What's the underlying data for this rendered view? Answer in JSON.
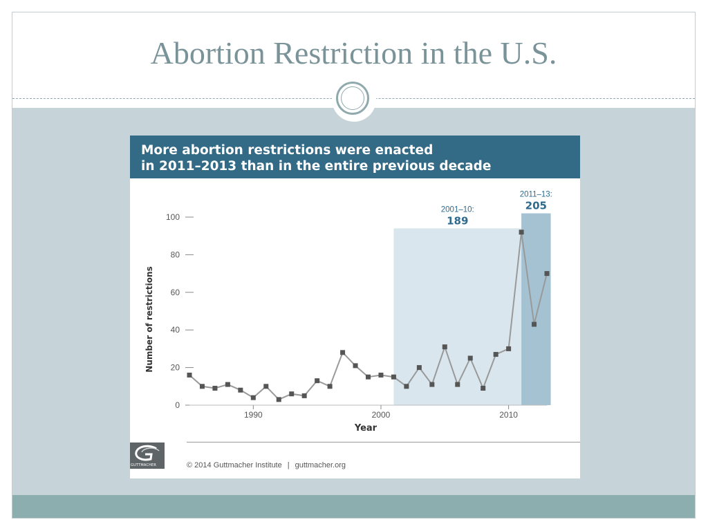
{
  "slide": {
    "title": "Abortion Restriction in the U.S."
  },
  "colors": {
    "title": "#7a9398",
    "band": "#c6d3d8",
    "header": "#336a85",
    "line": "#999999",
    "marker": "#555555",
    "highlight_2001_10": "#d9e6ed",
    "highlight_2011_13": "#a5c2d3",
    "period_label": "#2e6a8e"
  },
  "chart_data": {
    "type": "line",
    "title_lines": [
      "More abortion restrictions were enacted",
      "in 2011–2013 than in the entire previous decade"
    ],
    "xlabel": "Year",
    "ylabel": "Number of restrictions",
    "xlim": [
      1985,
      2013
    ],
    "ylim": [
      0,
      100
    ],
    "x_ticks": [
      1990,
      2000,
      2010
    ],
    "y_ticks": [
      0,
      20,
      40,
      60,
      80,
      100
    ],
    "grid": false,
    "series": [
      {
        "x": [
          1985,
          1986,
          1987,
          1988,
          1989,
          1990,
          1991,
          1992,
          1993,
          1994,
          1995,
          1996,
          1997,
          1998,
          1999,
          2000,
          2001,
          2002,
          2003,
          2004,
          2005,
          2006,
          2007,
          2008,
          2009,
          2010,
          2011,
          2012,
          2013
        ],
        "y": [
          16,
          10,
          9,
          11,
          8,
          4,
          10,
          3,
          6,
          5,
          13,
          10,
          28,
          21,
          15,
          16,
          15,
          10,
          20,
          11,
          31,
          11,
          25,
          9,
          27,
          30,
          92,
          43,
          70
        ]
      }
    ],
    "highlights": [
      {
        "x_range": [
          2001,
          2011
        ],
        "label": "2001–10:",
        "total": "189",
        "ymax": 94
      },
      {
        "x_range": [
          2011,
          2013.3
        ],
        "label": "2011–13:",
        "total": "205",
        "ymax": 102
      }
    ]
  },
  "footer": {
    "logo_text": "GUTTMACHER",
    "copyright": "© 2014 Guttmacher Institute",
    "separator": "|",
    "website": "guttmacher.org"
  }
}
